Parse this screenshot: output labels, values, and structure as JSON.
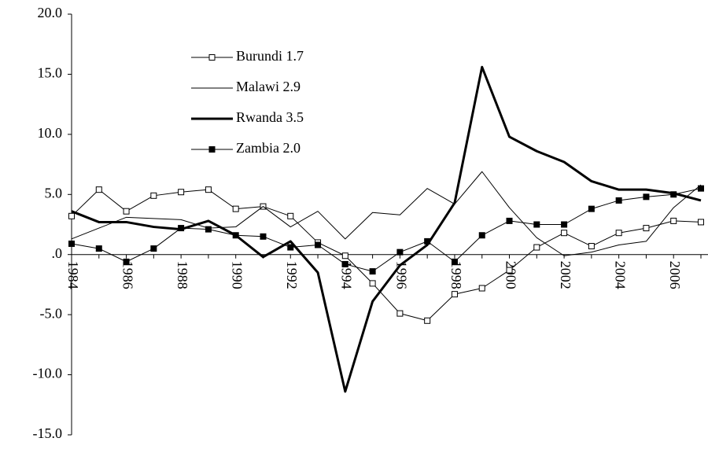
{
  "chart_data": {
    "type": "line",
    "categories": [
      "1984",
      null,
      "1986",
      null,
      "1988",
      null,
      "1990",
      null,
      "1992",
      null,
      "1994",
      null,
      "1996",
      null,
      "1998",
      null,
      "2000",
      null,
      "2002",
      null,
      "2004",
      null,
      "2006",
      null
    ],
    "series": [
      {
        "name": "Burundi 1.7",
        "color": "#000000",
        "marker": "open-square",
        "line_width": 1,
        "values": [
          3.2,
          5.4,
          3.6,
          4.9,
          5.2,
          5.4,
          3.8,
          4.0,
          3.2,
          1.0,
          -0.1,
          -2.4,
          -4.9,
          -5.5,
          -3.3,
          -2.8,
          -1.3,
          0.6,
          1.8,
          0.7,
          1.8,
          2.2,
          2.8,
          2.7
        ]
      },
      {
        "name": "Malawi 2.9",
        "color": "#000000",
        "marker": "none",
        "line_width": 1,
        "values": [
          1.3,
          2.2,
          3.1,
          3.0,
          2.9,
          2.2,
          2.3,
          4.0,
          2.3,
          3.6,
          1.3,
          3.5,
          3.3,
          5.5,
          4.2,
          6.9,
          3.9,
          1.4,
          -0.1,
          0.2,
          0.8,
          1.1,
          3.9,
          5.8
        ]
      },
      {
        "name": "Rwanda 3.5",
        "color": "#000000",
        "marker": "none",
        "line_width": 3,
        "values": [
          3.6,
          2.7,
          2.7,
          2.3,
          2.1,
          2.8,
          1.6,
          -0.2,
          1.1,
          -1.5,
          -11.4,
          -3.9,
          -0.9,
          0.8,
          4.3,
          15.6,
          9.8,
          8.6,
          7.7,
          6.1,
          5.4,
          5.4,
          5.1,
          4.5
        ]
      },
      {
        "name": "Zambia 2.0",
        "color": "#000000",
        "marker": "filled-square",
        "line_width": 1,
        "values": [
          0.9,
          0.5,
          -0.6,
          0.5,
          2.2,
          2.1,
          1.6,
          1.5,
          0.6,
          0.8,
          -0.8,
          -1.4,
          0.2,
          1.1,
          -0.6,
          1.6,
          2.8,
          2.5,
          2.5,
          3.8,
          4.5,
          4.8,
          5.0,
          5.5
        ]
      }
    ],
    "ylim": [
      -15,
      20
    ],
    "yticks": [
      {
        "value": -15,
        "label": "-15.0"
      },
      {
        "value": -10,
        "label": "-10.0"
      },
      {
        "value": -5,
        "label": "-5.0"
      },
      {
        "value": 0,
        "label": ".0"
      },
      {
        "value": 5,
        "label": "5.0"
      },
      {
        "value": 10,
        "label": "10.0"
      },
      {
        "value": 15,
        "label": "15.0"
      },
      {
        "value": 20,
        "label": "20.0"
      }
    ],
    "grid": false,
    "legend": "upper-left"
  }
}
